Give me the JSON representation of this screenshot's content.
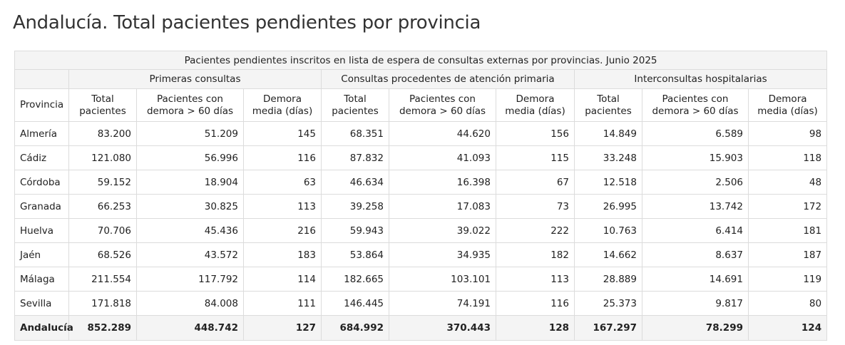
{
  "title": "Andalucía. Total pacientes pendientes por provincia",
  "table": {
    "caption": "Pacientes pendientes inscritos en lista de espera de consultas externas por provincias. Junio 2025",
    "groups": [
      "Primeras consultas",
      "Consultas procedentes de atención primaria",
      "Interconsultas hospitalarias"
    ],
    "province_header": "Provincia",
    "sub_headers": [
      [
        "Total",
        "pacientes"
      ],
      [
        "Pacientes con",
        "demora > 60 días"
      ],
      [
        "Demora",
        "media (días)"
      ]
    ],
    "rows": [
      [
        "Almería",
        "83.200",
        "51.209",
        "145",
        "68.351",
        "44.620",
        "156",
        "14.849",
        "6.589",
        "98"
      ],
      [
        "Cádiz",
        "121.080",
        "56.996",
        "116",
        "87.832",
        "41.093",
        "115",
        "33.248",
        "15.903",
        "118"
      ],
      [
        "Córdoba",
        "59.152",
        "18.904",
        "63",
        "46.634",
        "16.398",
        "67",
        "12.518",
        "2.506",
        "48"
      ],
      [
        "Granada",
        "66.253",
        "30.825",
        "113",
        "39.258",
        "17.083",
        "73",
        "26.995",
        "13.742",
        "172"
      ],
      [
        "Huelva",
        "70.706",
        "45.436",
        "216",
        "59.943",
        "39.022",
        "222",
        "10.763",
        "6.414",
        "181"
      ],
      [
        "Jaén",
        "68.526",
        "43.572",
        "183",
        "53.864",
        "34.935",
        "182",
        "14.662",
        "8.637",
        "187"
      ],
      [
        "Málaga",
        "211.554",
        "117.792",
        "114",
        "182.665",
        "103.101",
        "113",
        "28.889",
        "14.691",
        "119"
      ],
      [
        "Sevilla",
        "171.818",
        "84.008",
        "111",
        "146.445",
        "74.191",
        "116",
        "25.373",
        "9.817",
        "80"
      ]
    ],
    "total": [
      "Andalucía",
      "852.289",
      "448.742",
      "127",
      "684.992",
      "370.443",
      "128",
      "167.297",
      "78.299",
      "124"
    ]
  }
}
